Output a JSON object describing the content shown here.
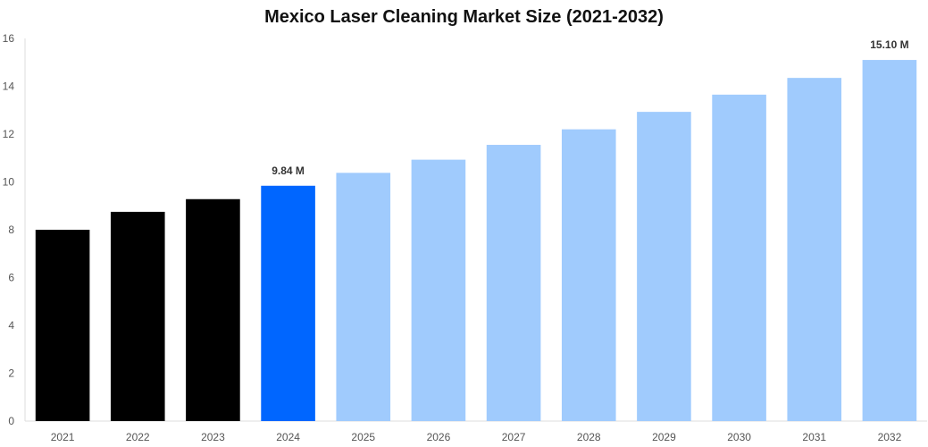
{
  "chart_data": {
    "type": "bar",
    "title": "Mexico Laser Cleaning Market Size (2021-2032)",
    "xlabel": "",
    "ylabel": "",
    "categories": [
      "2021",
      "2022",
      "2023",
      "2024",
      "2025",
      "2026",
      "2027",
      "2028",
      "2029",
      "2030",
      "2031",
      "2032"
    ],
    "values": [
      8.0,
      8.75,
      9.28,
      9.84,
      10.38,
      10.93,
      11.55,
      12.2,
      12.93,
      13.65,
      14.35,
      15.1
    ],
    "ylim": [
      0,
      16
    ],
    "yticks": [
      "0",
      "2",
      "4",
      "6",
      "8",
      "10",
      "12",
      "14",
      "16"
    ],
    "colors": [
      "#000000",
      "#000000",
      "#000000",
      "#0066ff",
      "#a0cbfd",
      "#a0cbfd",
      "#a0cbfd",
      "#a0cbfd",
      "#a0cbfd",
      "#a0cbfd",
      "#a0cbfd",
      "#a0cbfd"
    ],
    "data_labels": [
      {
        "category": "2024",
        "text": "9.84 M"
      },
      {
        "category": "2032",
        "text": "15.10 M"
      }
    ],
    "grid": false,
    "legend": "none"
  }
}
